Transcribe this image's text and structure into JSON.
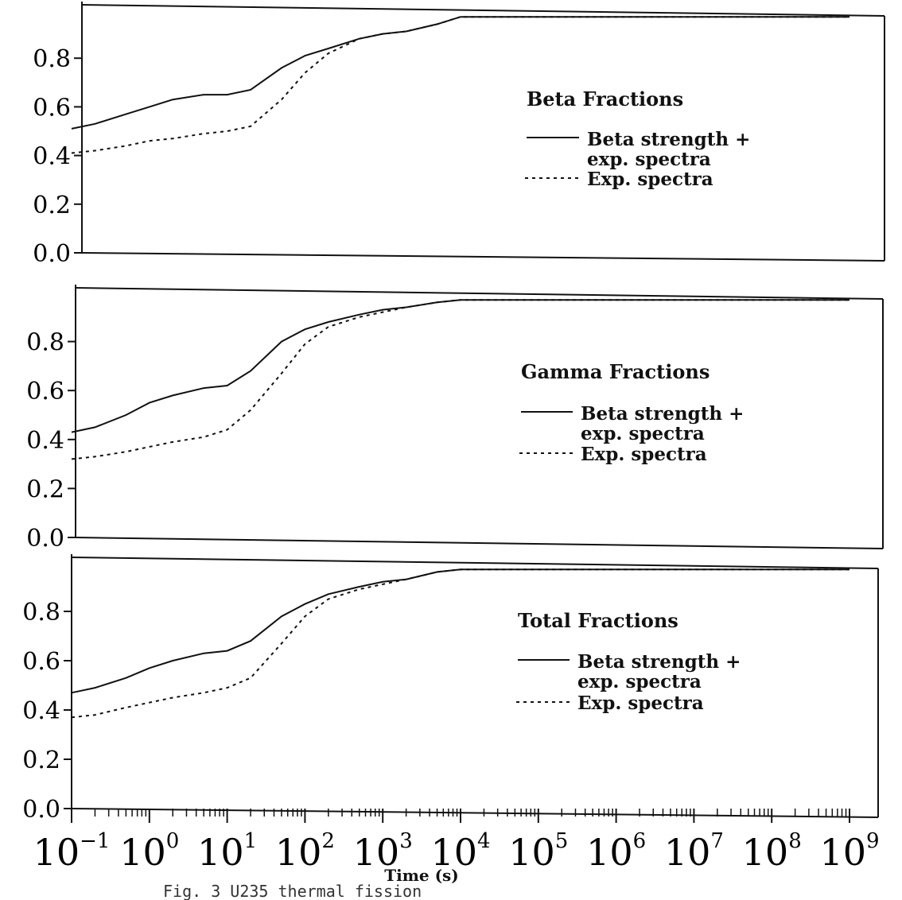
{
  "chart_data": [
    {
      "type": "line",
      "title": "Beta Fractions",
      "x_scale": "log",
      "xlim": [
        0.1,
        1000000000
      ],
      "ylim": [
        0,
        1
      ],
      "y_ticks": [
        "0.0",
        "0.2",
        "0.4",
        "0.6",
        "0.8"
      ],
      "legend_position": "right",
      "series": [
        {
          "name": "Beta strength + exp. spectra",
          "style": "solid",
          "x": [
            0.1,
            0.2,
            0.5,
            1,
            2,
            5,
            10,
            20,
            50,
            100,
            200,
            500,
            1000,
            2000,
            5000,
            10000,
            100000,
            1000000,
            10000000,
            100000000,
            1000000000
          ],
          "y": [
            0.51,
            0.53,
            0.57,
            0.6,
            0.63,
            0.65,
            0.65,
            0.67,
            0.76,
            0.81,
            0.84,
            0.88,
            0.9,
            0.91,
            0.94,
            0.97,
            0.97,
            0.97,
            0.97,
            0.97,
            0.97
          ]
        },
        {
          "name": "Exp. spectra",
          "style": "dashed",
          "x": [
            0.1,
            0.2,
            0.5,
            1,
            2,
            5,
            10,
            20,
            50,
            100,
            200,
            500,
            1000,
            2000,
            5000,
            10000,
            100000,
            1000000,
            10000000,
            100000000,
            1000000000
          ],
          "y": [
            0.41,
            0.42,
            0.44,
            0.46,
            0.47,
            0.49,
            0.5,
            0.52,
            0.63,
            0.74,
            0.82,
            0.88,
            0.9,
            0.91,
            0.94,
            0.97,
            0.97,
            0.97,
            0.97,
            0.97,
            0.97
          ]
        }
      ]
    },
    {
      "type": "line",
      "title": "Gamma Fractions",
      "x_scale": "log",
      "xlim": [
        0.1,
        1000000000
      ],
      "ylim": [
        0,
        1
      ],
      "y_ticks": [
        "0.0",
        "0.2",
        "0.4",
        "0.6",
        "0.8"
      ],
      "legend_position": "right",
      "series": [
        {
          "name": "Beta strength + exp. spectra",
          "style": "solid",
          "x": [
            0.1,
            0.2,
            0.5,
            1,
            2,
            5,
            10,
            20,
            50,
            100,
            200,
            500,
            1000,
            2000,
            5000,
            10000,
            100000,
            1000000,
            10000000,
            100000000,
            1000000000
          ],
          "y": [
            0.43,
            0.45,
            0.5,
            0.55,
            0.58,
            0.61,
            0.62,
            0.68,
            0.8,
            0.85,
            0.88,
            0.91,
            0.93,
            0.94,
            0.96,
            0.97,
            0.97,
            0.97,
            0.97,
            0.97,
            0.97
          ]
        },
        {
          "name": "Exp. spectra",
          "style": "dashed",
          "x": [
            0.1,
            0.2,
            0.5,
            1,
            2,
            5,
            10,
            20,
            50,
            100,
            200,
            500,
            1000,
            2000,
            5000,
            10000,
            100000,
            1000000,
            10000000,
            100000000,
            1000000000
          ],
          "y": [
            0.32,
            0.33,
            0.35,
            0.37,
            0.39,
            0.41,
            0.44,
            0.52,
            0.67,
            0.79,
            0.86,
            0.9,
            0.92,
            0.94,
            0.96,
            0.97,
            0.97,
            0.97,
            0.97,
            0.97,
            0.97
          ]
        }
      ]
    },
    {
      "type": "line",
      "title": "Total Fractions",
      "x_scale": "log",
      "xlim": [
        0.1,
        1000000000
      ],
      "ylim": [
        0,
        1
      ],
      "y_ticks": [
        "0.0",
        "0.2",
        "0.4",
        "0.6",
        "0.8"
      ],
      "x_ticks": [
        "10^-1",
        "10^0",
        "10^1",
        "10^2",
        "10^3",
        "10^4",
        "10^5",
        "10^6",
        "10^7",
        "10^8",
        "10^9"
      ],
      "xlabel": "Time (s)",
      "legend_position": "right",
      "series": [
        {
          "name": "Beta strength + exp. spectra",
          "style": "solid",
          "x": [
            0.1,
            0.2,
            0.5,
            1,
            2,
            5,
            10,
            20,
            50,
            100,
            200,
            500,
            1000,
            2000,
            5000,
            10000,
            100000,
            1000000,
            10000000,
            100000000,
            1000000000
          ],
          "y": [
            0.47,
            0.49,
            0.53,
            0.57,
            0.6,
            0.63,
            0.64,
            0.68,
            0.78,
            0.83,
            0.87,
            0.9,
            0.92,
            0.93,
            0.96,
            0.97,
            0.97,
            0.97,
            0.97,
            0.97,
            0.97
          ]
        },
        {
          "name": "Exp. spectra",
          "style": "dashed",
          "x": [
            0.1,
            0.2,
            0.5,
            1,
            2,
            5,
            10,
            20,
            50,
            100,
            200,
            500,
            1000,
            2000,
            5000,
            10000,
            100000,
            1000000,
            10000000,
            100000000,
            1000000000
          ],
          "y": [
            0.37,
            0.38,
            0.41,
            0.43,
            0.45,
            0.47,
            0.49,
            0.53,
            0.67,
            0.78,
            0.85,
            0.89,
            0.91,
            0.93,
            0.96,
            0.97,
            0.97,
            0.97,
            0.97,
            0.97,
            0.97
          ]
        }
      ]
    }
  ],
  "legend": {
    "solid_line_1": "Beta strength +",
    "solid_line_2": "exp. spectra",
    "dashed_line": "Exp. spectra"
  },
  "caption": "Fig. 3  U235 thermal fission"
}
